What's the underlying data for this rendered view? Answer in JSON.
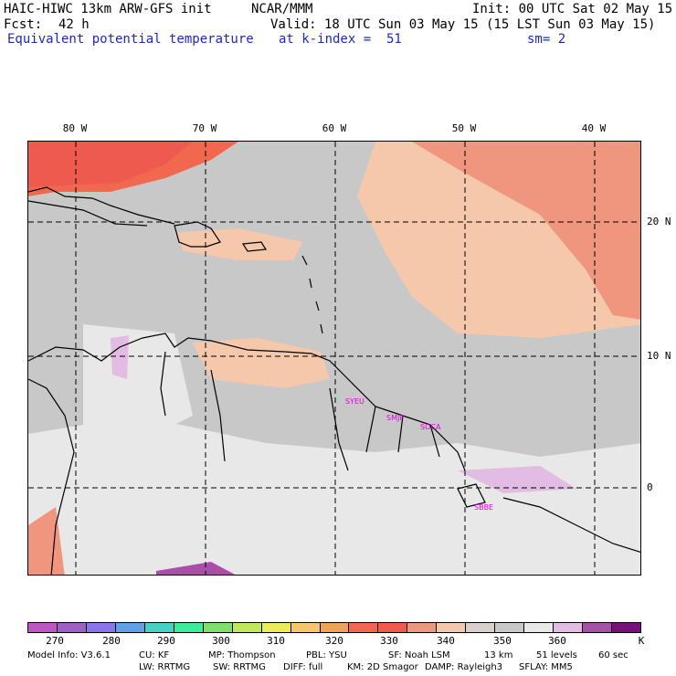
{
  "header": {
    "model_title": "HAIC-HIWC 13km ARW-GFS init",
    "org": "NCAR/MMM",
    "init": "Init: 00 UTC Sat 02 May 15",
    "fcst_label": "Fcst:",
    "fcst_value": "42 h",
    "valid": "Valid: 18 UTC Sun 03 May 15 (15 LST Sun 03 May 15)",
    "field": "Equivalent potential temperature",
    "level": "at k-index =  51",
    "smoothing": "sm= 2"
  },
  "map": {
    "lon_labels": [
      "80 W",
      "70 W",
      "60 W",
      "50 W",
      "40 W"
    ],
    "lat_labels": [
      "20 N",
      "10 N",
      "0"
    ],
    "stations": [
      "SYEU",
      "SMJP",
      "SOCA",
      "SBBE"
    ]
  },
  "colorbar": {
    "colors": [
      "#c353c8",
      "#a05fc8",
      "#8a76e8",
      "#5aa3ea",
      "#46d0c6",
      "#3eeb9c",
      "#7ae266",
      "#bfe85a",
      "#ecec5a",
      "#f5c66e",
      "#f5a05a",
      "#f2684e",
      "#ef5a4e",
      "#f0967e",
      "#f5c8ac",
      "#d8d0cc",
      "#c8c8c8",
      "#e8e8e8",
      "#e2bce2",
      "#a84fa8",
      "#7b0e7b"
    ],
    "labels": [
      "270",
      "280",
      "290",
      "300",
      "310",
      "320",
      "330",
      "340",
      "350",
      "360"
    ],
    "unit": "K"
  },
  "footer": {
    "line1": [
      "Model Info: V3.6.1",
      "CU: KF",
      "MP: Thompson",
      "PBL: YSU",
      "SF: Noah LSM",
      "13 km",
      "51 levels",
      "60 sec"
    ],
    "line2": [
      "LW: RRTMG",
      "SW: RRTMG",
      "DIFF: full",
      "KM: 2D Smagor",
      "DAMP: Rayleigh3",
      "SFLAY: MM5"
    ]
  }
}
